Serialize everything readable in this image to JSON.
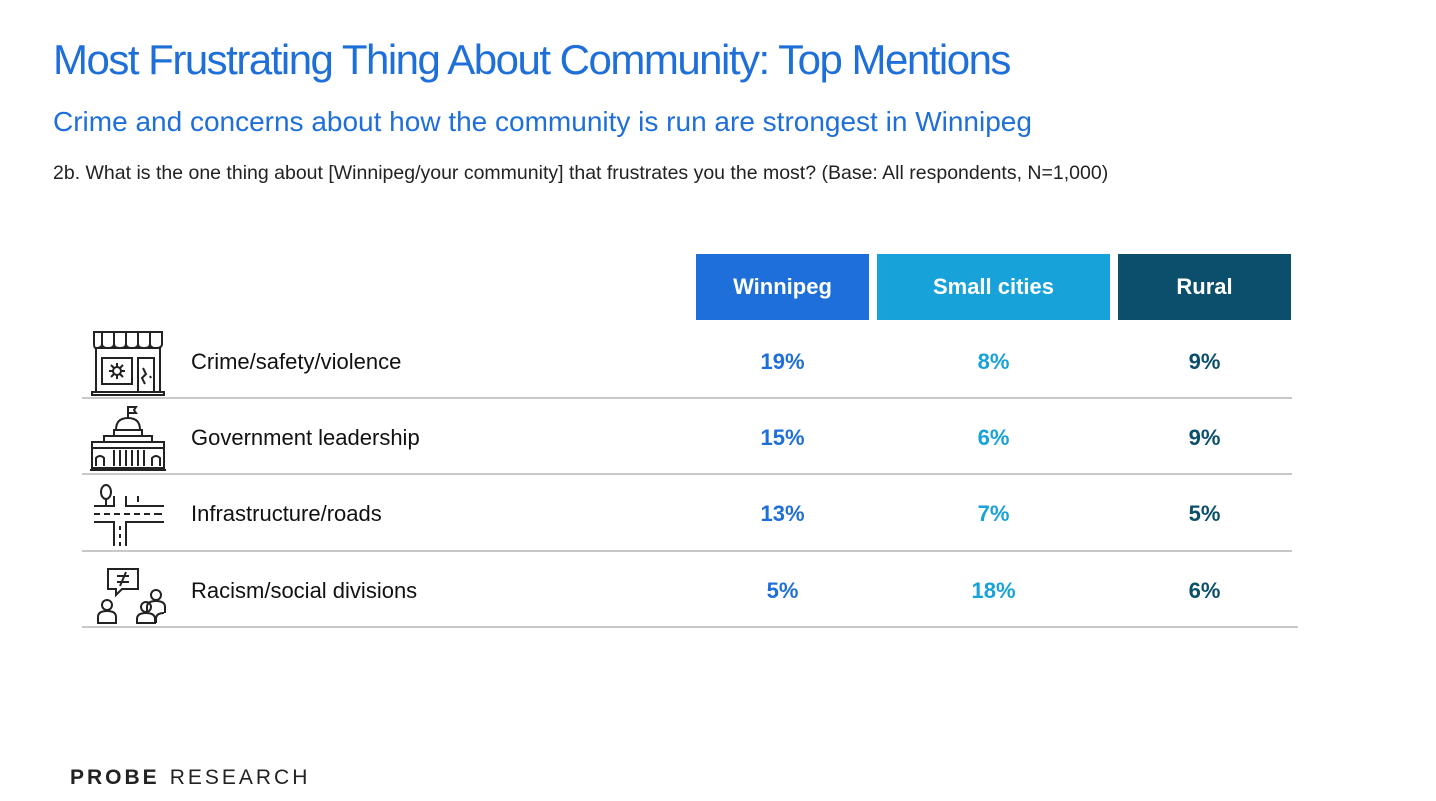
{
  "title": "Most Frustrating Thing About Community: Top Mentions",
  "subtitle": "Crime and concerns about how the community is run are strongest in Winnipeg",
  "question": "2b. What is the one thing about [Winnipeg/your community] that frustrates you the most? (Base: All respondents, N=1,000)",
  "logo": {
    "bold_part": "PROBE",
    "regular_part": "RESEARCH"
  },
  "colors": {
    "winnipeg": "#1e6fd9",
    "small_cities": "#17a2d9",
    "rural": "#0b4f6c",
    "divider": "#c8c8c8"
  },
  "chart_data": {
    "type": "table",
    "columns": [
      "Winnipeg",
      "Small cities",
      "Rural"
    ],
    "rows": [
      {
        "label": "Crime/safety/violence",
        "icon": "storefront-broken-window-icon",
        "values": [
          "19%",
          "8%",
          "9%"
        ]
      },
      {
        "label": "Government leadership",
        "icon": "legislature-building-icon",
        "values": [
          "15%",
          "6%",
          "9%"
        ]
      },
      {
        "label": "Infrastructure/roads",
        "icon": "road-intersection-icon",
        "values": [
          "13%",
          "7%",
          "5%"
        ]
      },
      {
        "label": "Racism/social divisions",
        "icon": "people-not-equal-icon",
        "values": [
          "5%",
          "18%",
          "6%"
        ]
      }
    ]
  }
}
